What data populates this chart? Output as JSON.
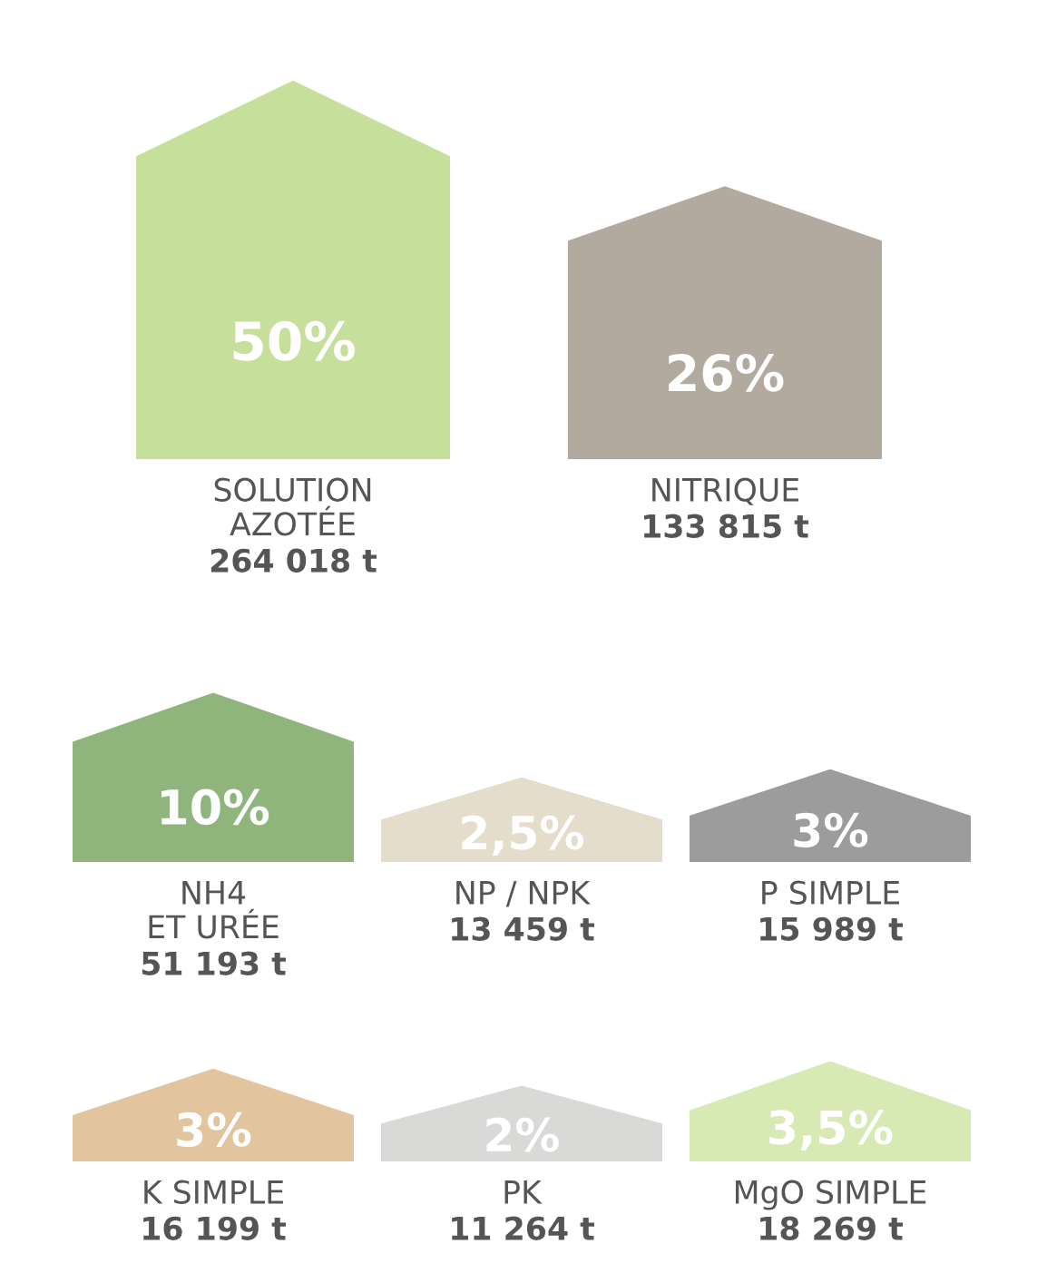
{
  "chart_data": {
    "type": "other",
    "categories": [
      "SOLUTION\nAZOTÉE",
      "NITRIQUE",
      "NH4\nET URÉE",
      "NP / NPK",
      "P SIMPLE",
      "K SIMPLE",
      "PK",
      "MgO SIMPLE"
    ],
    "series": [
      {
        "values": [
          50,
          26,
          10,
          2.5,
          3,
          3,
          2,
          3.5
        ],
        "value_labels": [
          "50%",
          "26%",
          "10%",
          "2,5%",
          "3%",
          "3%",
          "2%",
          "3,5%"
        ],
        "colors": [
          "#c6e09c",
          "#b3aa9f",
          "#8fb57c",
          "#e4ddcc",
          "#9c9c9c",
          "#e2c59e",
          "#d9d9d8",
          "#d7eab4"
        ]
      },
      {
        "values": [
          264018,
          133815,
          51193,
          13459,
          15989,
          16199,
          11264,
          18269
        ],
        "value_labels": [
          "264 018 t",
          "133 815 t",
          "51 193 t",
          "13 459 t",
          "15 989 t",
          "16 199 t",
          "11 264 t",
          "18 269 t"
        ]
      }
    ]
  }
}
